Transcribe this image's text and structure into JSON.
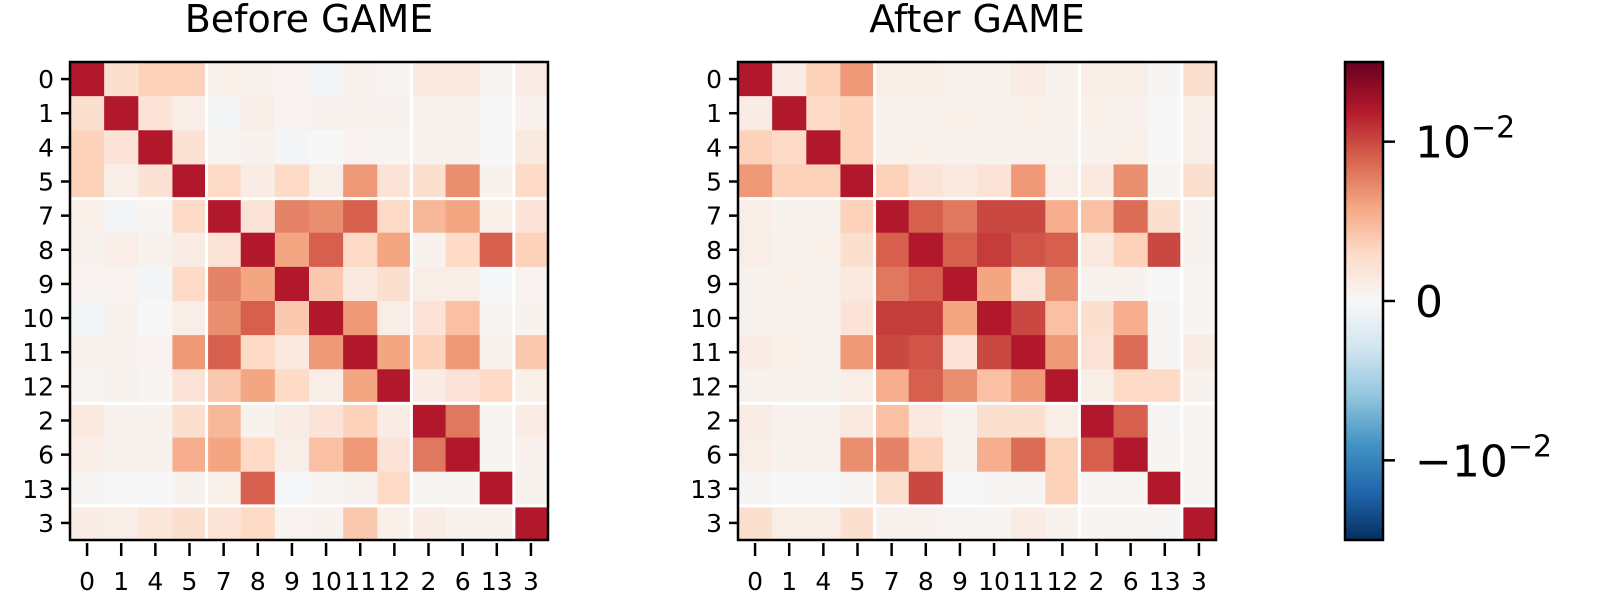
{
  "chart_data": [
    {
      "type": "heatmap",
      "title": "Before GAME",
      "row_labels": [
        "0",
        "1",
        "4",
        "5",
        "7",
        "8",
        "9",
        "10",
        "11",
        "12",
        "2",
        "6",
        "13",
        "3"
      ],
      "col_labels": [
        "0",
        "1",
        "4",
        "5",
        "7",
        "8",
        "9",
        "10",
        "11",
        "12",
        "2",
        "6",
        "13",
        "3"
      ],
      "group_sizes": [
        4,
        6,
        3,
        1
      ],
      "value_scale": "1 = 10^-2",
      "values": [
        [
          1.2,
          0.25,
          0.35,
          0.35,
          0.08,
          0.05,
          0.04,
          -0.04,
          0.06,
          0.03,
          0.15,
          0.15,
          0.02,
          0.12
        ],
        [
          0.25,
          1.2,
          0.2,
          0.1,
          -0.03,
          0.1,
          0.04,
          0.05,
          0.07,
          0.05,
          0.06,
          0.05,
          0.0,
          0.06
        ],
        [
          0.35,
          0.2,
          1.2,
          0.22,
          0.03,
          0.05,
          -0.03,
          0.0,
          0.04,
          0.03,
          0.05,
          0.05,
          0.0,
          0.15
        ],
        [
          0.35,
          0.1,
          0.22,
          1.2,
          0.3,
          0.12,
          0.3,
          0.1,
          0.65,
          0.2,
          0.25,
          0.7,
          0.05,
          0.3
        ],
        [
          0.08,
          -0.03,
          0.03,
          0.3,
          1.2,
          0.2,
          0.75,
          0.7,
          0.9,
          0.3,
          0.5,
          0.6,
          0.08,
          0.2
        ],
        [
          0.05,
          0.1,
          0.05,
          0.12,
          0.2,
          1.2,
          0.6,
          0.9,
          0.3,
          0.6,
          0.05,
          0.3,
          0.9,
          0.35
        ],
        [
          0.04,
          0.04,
          -0.03,
          0.3,
          0.75,
          0.6,
          1.2,
          0.4,
          0.15,
          0.25,
          0.1,
          0.1,
          -0.02,
          0.04
        ],
        [
          -0.04,
          0.05,
          0.0,
          0.1,
          0.7,
          0.9,
          0.4,
          1.2,
          0.65,
          0.1,
          0.2,
          0.45,
          0.03,
          0.05
        ],
        [
          0.06,
          0.07,
          0.04,
          0.65,
          0.9,
          0.3,
          0.15,
          0.65,
          1.2,
          0.6,
          0.35,
          0.65,
          0.05,
          0.4
        ],
        [
          0.03,
          0.05,
          0.03,
          0.2,
          0.4,
          0.6,
          0.3,
          0.1,
          0.6,
          1.2,
          0.12,
          0.2,
          0.3,
          0.08
        ],
        [
          0.15,
          0.06,
          0.05,
          0.25,
          0.5,
          0.05,
          0.12,
          0.2,
          0.35,
          0.12,
          1.2,
          0.8,
          0.03,
          0.12
        ],
        [
          0.1,
          0.05,
          0.05,
          0.55,
          0.6,
          0.3,
          0.1,
          0.45,
          0.65,
          0.2,
          0.8,
          1.2,
          0.03,
          0.06
        ],
        [
          0.02,
          0.0,
          0.0,
          0.05,
          0.08,
          0.9,
          -0.02,
          0.03,
          0.05,
          0.3,
          0.03,
          0.03,
          1.2,
          0.05
        ],
        [
          0.12,
          0.1,
          0.18,
          0.25,
          0.2,
          0.3,
          0.04,
          0.05,
          0.4,
          0.08,
          0.12,
          0.06,
          0.05,
          1.2
        ]
      ]
    },
    {
      "type": "heatmap",
      "title": "After GAME",
      "row_labels": [
        "0",
        "1",
        "4",
        "5",
        "7",
        "8",
        "9",
        "10",
        "11",
        "12",
        "2",
        "6",
        "13",
        "3"
      ],
      "col_labels": [
        "0",
        "1",
        "4",
        "5",
        "7",
        "8",
        "9",
        "10",
        "11",
        "12",
        "2",
        "6",
        "13",
        "3"
      ],
      "group_sizes": [
        4,
        6,
        3,
        1
      ],
      "value_scale": "1 = 10^-2",
      "values": [
        [
          1.2,
          0.12,
          0.35,
          0.65,
          0.1,
          0.1,
          0.05,
          0.05,
          0.12,
          0.05,
          0.1,
          0.1,
          0.02,
          0.25
        ],
        [
          0.12,
          1.2,
          0.3,
          0.35,
          0.05,
          0.06,
          0.08,
          0.05,
          0.08,
          0.05,
          0.08,
          0.06,
          0.0,
          0.1
        ],
        [
          0.35,
          0.3,
          1.2,
          0.35,
          0.05,
          0.08,
          0.05,
          0.05,
          0.06,
          0.05,
          0.06,
          0.08,
          0.0,
          0.1
        ],
        [
          0.65,
          0.35,
          0.35,
          1.2,
          0.35,
          0.2,
          0.15,
          0.2,
          0.65,
          0.1,
          0.15,
          0.7,
          0.03,
          0.25
        ],
        [
          0.1,
          0.05,
          0.05,
          0.35,
          1.2,
          0.9,
          0.8,
          1.0,
          1.0,
          0.55,
          0.45,
          0.85,
          0.25,
          0.05
        ],
        [
          0.1,
          0.06,
          0.08,
          0.25,
          0.9,
          1.2,
          0.9,
          1.05,
          0.95,
          0.9,
          0.15,
          0.35,
          1.0,
          0.05
        ],
        [
          0.05,
          0.08,
          0.05,
          0.15,
          0.8,
          0.9,
          1.2,
          0.6,
          0.2,
          0.7,
          0.05,
          0.05,
          0.0,
          0.03
        ],
        [
          0.05,
          0.05,
          0.05,
          0.2,
          1.05,
          1.05,
          0.6,
          1.2,
          1.0,
          0.45,
          0.25,
          0.55,
          0.02,
          0.03
        ],
        [
          0.12,
          0.08,
          0.06,
          0.65,
          1.0,
          0.95,
          0.2,
          1.0,
          1.2,
          0.65,
          0.2,
          0.85,
          0.02,
          0.12
        ],
        [
          0.05,
          0.05,
          0.05,
          0.1,
          0.55,
          0.9,
          0.7,
          0.45,
          0.65,
          1.2,
          0.1,
          0.3,
          0.3,
          0.05
        ],
        [
          0.12,
          0.06,
          0.06,
          0.15,
          0.45,
          0.15,
          0.05,
          0.25,
          0.25,
          0.1,
          1.2,
          0.9,
          0.02,
          0.03
        ],
        [
          0.1,
          0.05,
          0.06,
          0.7,
          0.75,
          0.35,
          0.05,
          0.55,
          0.85,
          0.35,
          0.9,
          1.2,
          0.03,
          0.03
        ],
        [
          0.02,
          0.0,
          0.0,
          0.03,
          0.25,
          1.0,
          0.0,
          0.02,
          0.02,
          0.35,
          0.02,
          0.03,
          1.2,
          0.02
        ],
        [
          0.25,
          0.1,
          0.1,
          0.25,
          0.05,
          0.05,
          0.03,
          0.03,
          0.12,
          0.05,
          0.03,
          0.03,
          0.02,
          1.2
        ]
      ]
    }
  ],
  "colorbar": {
    "colormap": "RdBu_r",
    "range": [
      -1.5,
      1.5
    ],
    "ticks": [
      {
        "value": 1,
        "base": "10",
        "sign": "",
        "exponent": "−2"
      },
      {
        "value": 0,
        "base": "0",
        "sign": "",
        "exponent": ""
      },
      {
        "value": -1,
        "base": "10",
        "sign": "−",
        "exponent": "−2"
      }
    ]
  }
}
